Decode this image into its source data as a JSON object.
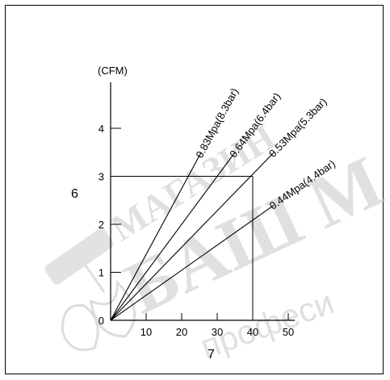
{
  "chart_data": {
    "type": "line",
    "unit_label": "(CFM)",
    "y_ticks": [
      0,
      1,
      2,
      3,
      4
    ],
    "x_ticks": [
      10,
      20,
      30,
      40,
      50
    ],
    "xlim": [
      0,
      50
    ],
    "ylim": [
      0,
      4.5
    ],
    "x_callout": "7",
    "y_callout": "6",
    "reference_point": {
      "x": 40,
      "y": 3
    },
    "series": [
      {
        "name": "0.83Mpa(8.3bar)",
        "x": [
          0,
          25.5
        ],
        "y": [
          0,
          3.5
        ]
      },
      {
        "name": "0.64Mpa(6.4bar)",
        "x": [
          0,
          35
        ],
        "y": [
          0,
          3.5
        ]
      },
      {
        "name": "0.53Mpa(5.3bar)",
        "x": [
          0,
          46
        ],
        "y": [
          0,
          3.5
        ]
      },
      {
        "name": "0.44Mpa(4.4bar)",
        "x": [
          0,
          46
        ],
        "y": [
          0,
          2.4
        ]
      }
    ]
  },
  "watermark": {
    "line1": "МАГАЗИН",
    "line2": "БАШ М",
    "line3": "професи",
    "icon": "paint-roller-icon"
  }
}
